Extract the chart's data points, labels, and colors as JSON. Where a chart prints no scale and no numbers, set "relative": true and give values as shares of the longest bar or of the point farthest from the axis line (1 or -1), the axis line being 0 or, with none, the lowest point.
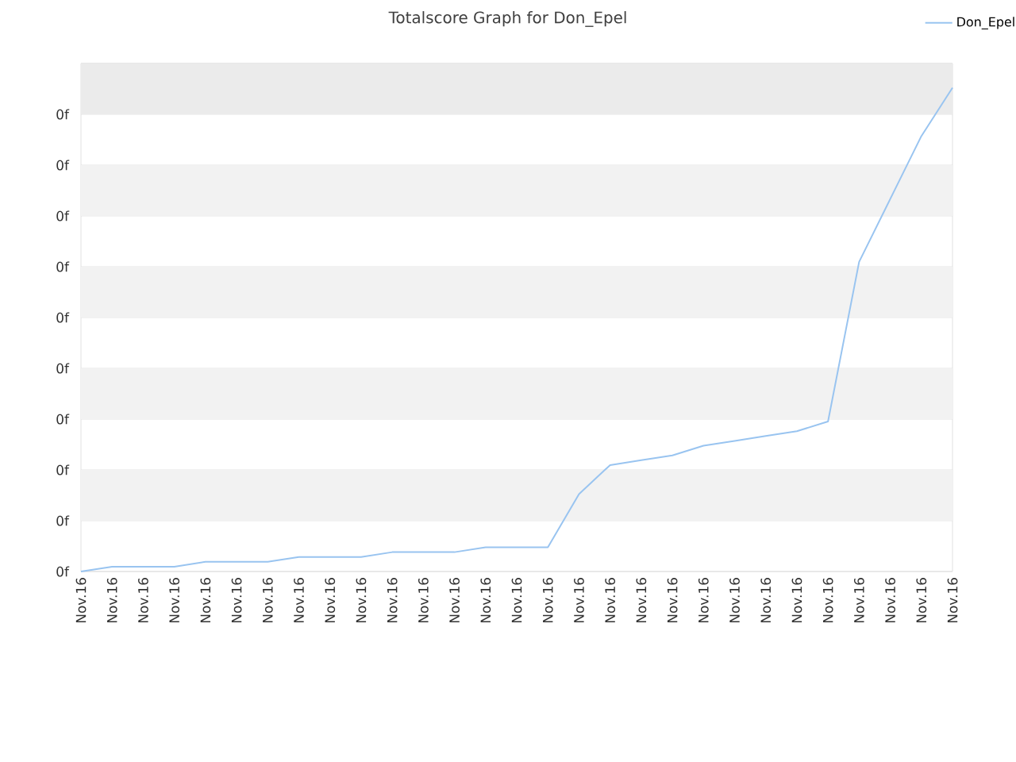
{
  "chart_data": {
    "type": "line",
    "title": "Totalscore Graph for Don_Epel",
    "categories": [
      "Nov.16",
      "Nov.16",
      "Nov.16",
      "Nov.16",
      "Nov.16",
      "Nov.16",
      "Nov.16",
      "Nov.16",
      "Nov.16",
      "Nov.16",
      "Nov.16",
      "Nov.16",
      "Nov.16",
      "Nov.16",
      "Nov.16",
      "Nov.16",
      "Nov.16",
      "Nov.16",
      "Nov.16",
      "Nov.16",
      "Nov.16",
      "Nov.16",
      "Nov.16",
      "Nov.16",
      "Nov.16",
      "Nov.16",
      "Nov.16",
      "Nov.16",
      "Nov.16"
    ],
    "relative": true,
    "series": [
      {
        "name": "Don_Epel",
        "color": "#99c4f0",
        "values": [
          0,
          0.01,
          0.01,
          0.01,
          0.02,
          0.02,
          0.02,
          0.03,
          0.03,
          0.03,
          0.04,
          0.04,
          0.04,
          0.05,
          0.05,
          0.05,
          0.16,
          0.22,
          0.23,
          0.24,
          0.26,
          0.27,
          0.28,
          0.29,
          0.31,
          0.64,
          0.77,
          0.9,
          1
        ]
      }
    ],
    "annotations": [
      "0f",
      "0f",
      "0f",
      "0f",
      "0f",
      "0f",
      "0f",
      "0f",
      "0f",
      "0f"
    ],
    "bands": [
      {
        "axis": "y",
        "from": 0.105,
        "to": 0.21,
        "color": "#f2f2f2"
      },
      {
        "axis": "y",
        "from": 0.315,
        "to": 0.42,
        "color": "#f2f2f2"
      },
      {
        "axis": "y",
        "from": 0.525,
        "to": 0.63,
        "color": "#f2f2f2"
      },
      {
        "axis": "y",
        "from": 0.735,
        "to": 0.84,
        "color": "#f2f2f2"
      },
      {
        "axis": "y",
        "from": 0.945,
        "to": 1.05,
        "color": "#ebebeb"
      }
    ],
    "grid": "y",
    "legend": "top right",
    "marker": "none",
    "line_style": "solid"
  }
}
